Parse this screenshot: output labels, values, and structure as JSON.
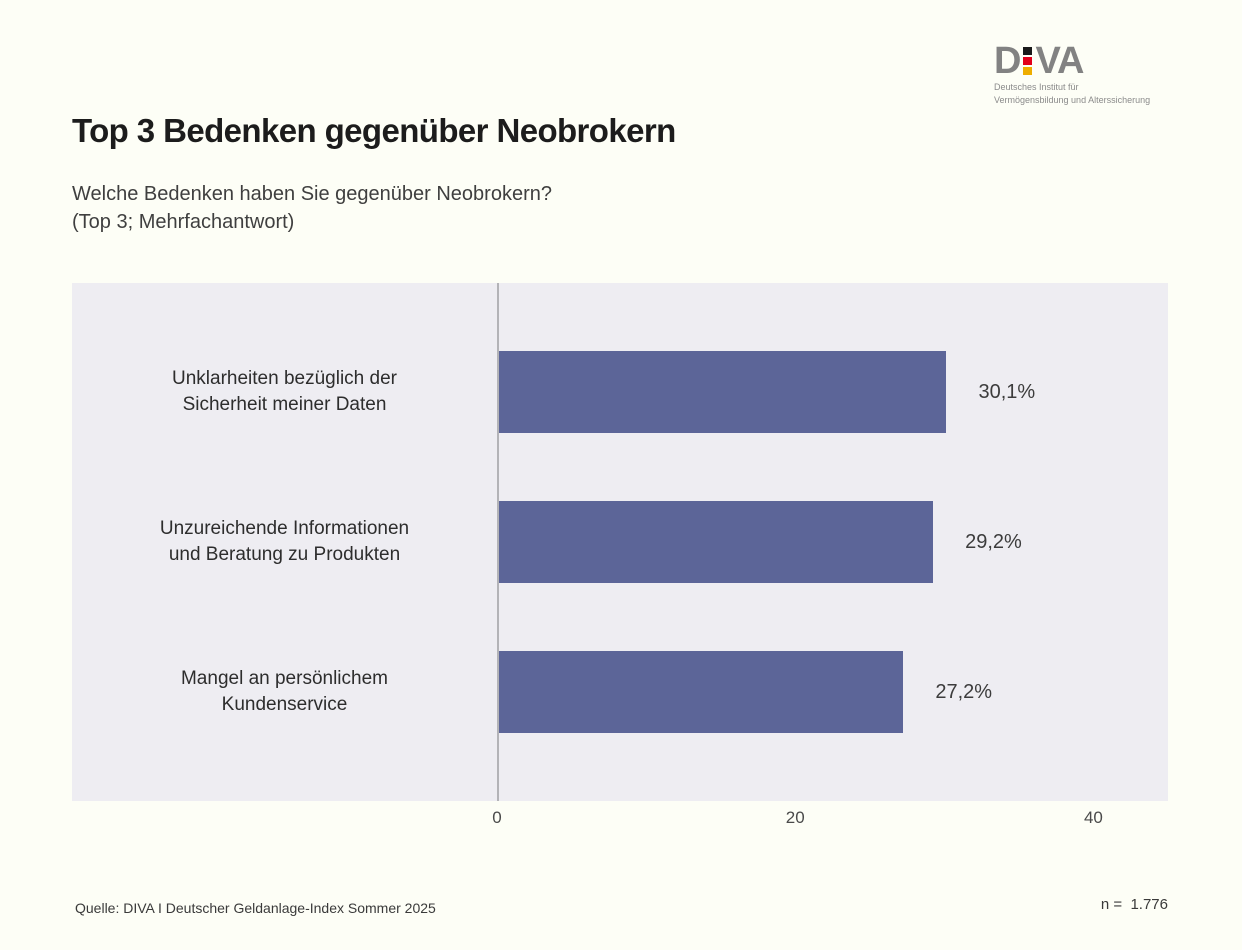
{
  "logo": {
    "word_d": "D",
    "word_va": "VA",
    "tagline_line1": "Deutsches Institut für",
    "tagline_line2": "Vermögensbildung und Alterssicherung",
    "flag_black": "#1a1a1a",
    "flag_red": "#e2001a",
    "flag_gold": "#eead00"
  },
  "header": {
    "title": "Top 3 Bedenken gegenüber Neobrokern",
    "subtitle_line1": "Welche Bedenken haben Sie gegenüber Neobrokern?",
    "subtitle_line2": "(Top 3; Mehrfachantwort)"
  },
  "chart_data": {
    "type": "bar",
    "orientation": "horizontal",
    "categories": [
      "Unklarheiten bezüglich der\nSicherheit meiner Daten",
      "Unzureichende Informationen\nund Beratung zu Produkten",
      "Mangel an persönlichem\nKundenservice"
    ],
    "values": [
      30.1,
      29.2,
      27.2
    ],
    "value_labels": [
      "30,1%",
      "29,2%",
      "27,2%"
    ],
    "xlim": [
      0,
      45
    ],
    "xticks": [
      0,
      20,
      40
    ],
    "xtick_labels": [
      "0",
      "20",
      "40"
    ],
    "bar_color": "#5c6598",
    "plot_bg": "#eeedf2",
    "axis_line_color": "#b3b3b7",
    "grid": false,
    "legend": false
  },
  "footer": {
    "source": "Quelle: DIVA I Deutscher Geldanlage-Index Sommer 2025",
    "n_text": "n =  1.776"
  }
}
